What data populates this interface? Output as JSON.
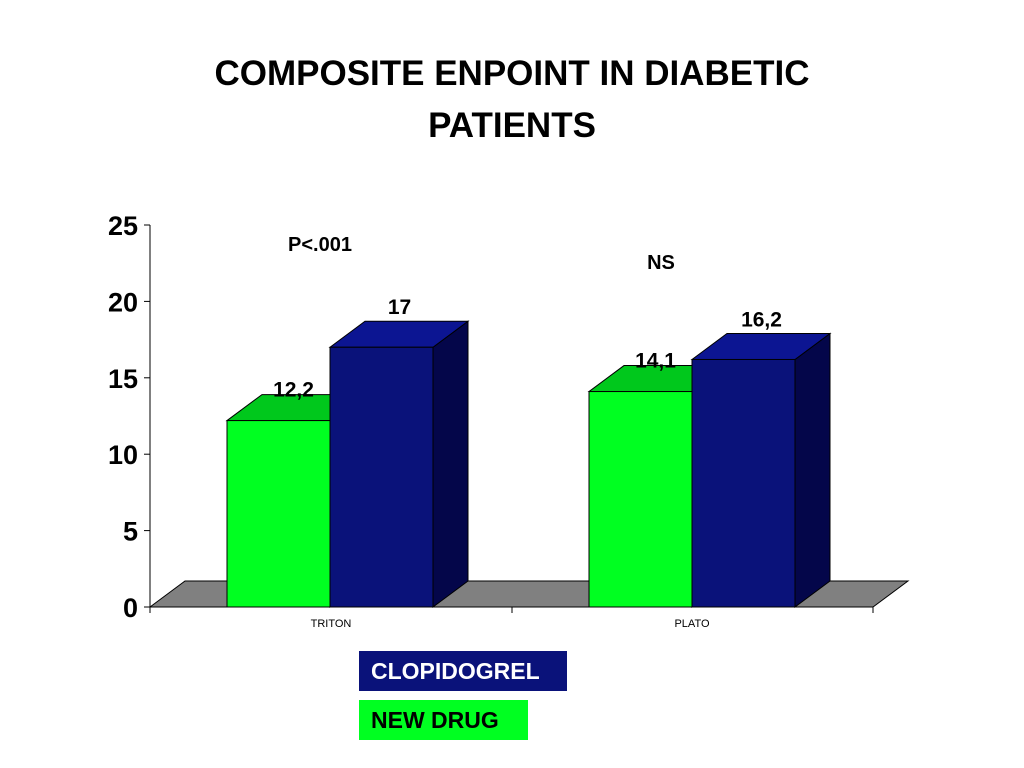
{
  "title": "COMPOSITE ENPOINT  IN DIABETIC\nPATIENTS",
  "chart_data": {
    "type": "bar",
    "categories": [
      "TRITON",
      "PLATO"
    ],
    "series": [
      {
        "name": "NEW DRUG",
        "values": [
          12.2,
          14.1
        ],
        "labels": [
          "12,2",
          "14,1"
        ],
        "color": "#00ff21",
        "side_color": "#00b81a",
        "top_color": "#00c81c"
      },
      {
        "name": "CLOPIDOGREL",
        "values": [
          17,
          16.2
        ],
        "labels": [
          "17",
          "16,2"
        ],
        "color": "#0a127a",
        "side_color": "#04064a",
        "top_color": "#0c1592"
      }
    ],
    "ylim": [
      0,
      25
    ],
    "yticks": [
      0,
      5,
      10,
      15,
      20,
      25
    ],
    "annotations": [
      "P<.001",
      "NS"
    ],
    "xlabel": "",
    "ylabel": "",
    "legend_position": "bottom",
    "grid": false,
    "3d": true
  },
  "legend": {
    "clopidogrel": "CLOPIDOGREL",
    "new_drug": "NEW DRUG"
  },
  "colors": {
    "floor": "#808080"
  }
}
